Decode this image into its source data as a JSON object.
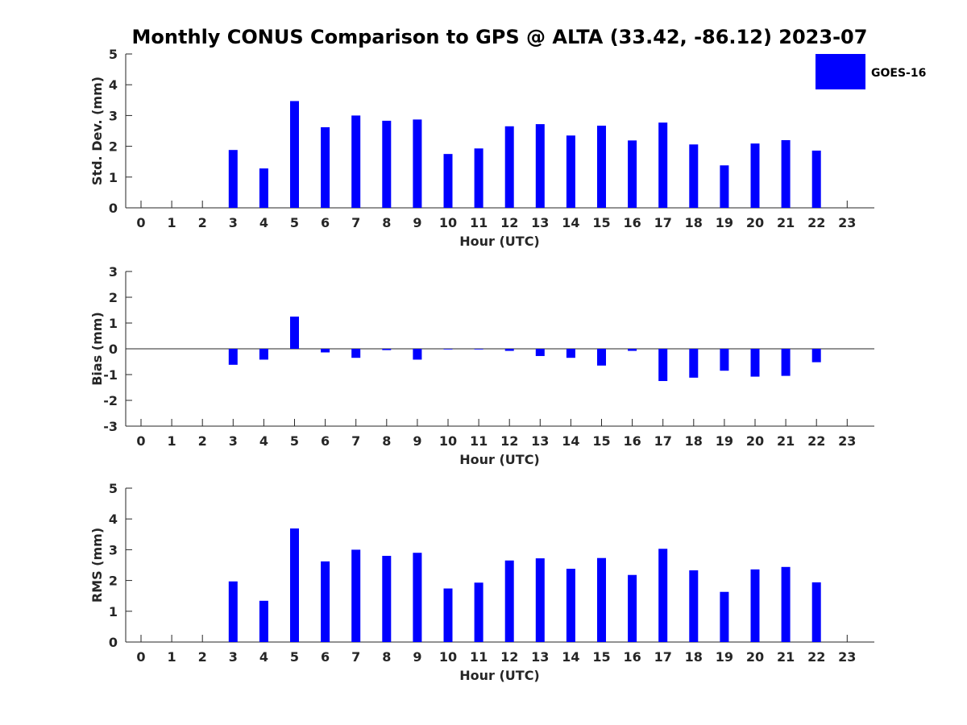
{
  "title": "Monthly CONUS Comparison to GPS @ ALTA (33.42, -86.12) 2023-07",
  "legend": {
    "label": "GOES-16",
    "color": "#0000ff"
  },
  "bar_color": "#0000ff",
  "chart_data": [
    {
      "type": "bar",
      "id": "std",
      "series_name": "GOES-16",
      "xlabel": "Hour (UTC)",
      "ylabel": "Std. Dev. (mm)",
      "ylim": [
        0,
        5
      ],
      "yticks": [
        0,
        1,
        2,
        3,
        4,
        5
      ],
      "categories": [
        "0",
        "1",
        "2",
        "3",
        "4",
        "5",
        "6",
        "7",
        "8",
        "9",
        "10",
        "11",
        "12",
        "13",
        "14",
        "15",
        "16",
        "17",
        "18",
        "19",
        "20",
        "21",
        "22",
        "23"
      ],
      "values": [
        null,
        null,
        null,
        1.88,
        1.28,
        3.47,
        2.62,
        3.0,
        2.83,
        2.87,
        1.75,
        1.93,
        2.65,
        2.72,
        2.35,
        2.67,
        2.19,
        2.77,
        2.06,
        1.38,
        2.09,
        2.2,
        1.86,
        null
      ]
    },
    {
      "type": "bar",
      "id": "bias",
      "series_name": "GOES-16",
      "xlabel": "Hour (UTC)",
      "ylabel": "Bias (mm)",
      "ylim": [
        -3,
        3
      ],
      "yticks": [
        -3,
        -2,
        -1,
        0,
        1,
        2,
        3
      ],
      "zero_line": true,
      "categories": [
        "0",
        "1",
        "2",
        "3",
        "4",
        "5",
        "6",
        "7",
        "8",
        "9",
        "10",
        "11",
        "12",
        "13",
        "14",
        "15",
        "16",
        "17",
        "18",
        "19",
        "20",
        "21",
        "22",
        "23"
      ],
      "values": [
        null,
        null,
        null,
        -0.62,
        -0.42,
        1.25,
        -0.14,
        -0.35,
        -0.05,
        -0.42,
        -0.02,
        -0.02,
        -0.08,
        -0.28,
        -0.35,
        -0.65,
        -0.08,
        -1.25,
        -1.12,
        -0.85,
        -1.08,
        -1.05,
        -0.52,
        null
      ]
    },
    {
      "type": "bar",
      "id": "rms",
      "series_name": "GOES-16",
      "xlabel": "Hour (UTC)",
      "ylabel": "RMS (mm)",
      "ylim": [
        0,
        5
      ],
      "yticks": [
        0,
        1,
        2,
        3,
        4,
        5
      ],
      "categories": [
        "0",
        "1",
        "2",
        "3",
        "4",
        "5",
        "6",
        "7",
        "8",
        "9",
        "10",
        "11",
        "12",
        "13",
        "14",
        "15",
        "16",
        "17",
        "18",
        "19",
        "20",
        "21",
        "22",
        "23"
      ],
      "values": [
        null,
        null,
        null,
        1.97,
        1.34,
        3.69,
        2.62,
        3.0,
        2.8,
        2.9,
        1.74,
        1.93,
        2.65,
        2.72,
        2.38,
        2.73,
        2.18,
        3.03,
        2.33,
        1.63,
        2.36,
        2.44,
        1.94,
        null
      ]
    }
  ]
}
